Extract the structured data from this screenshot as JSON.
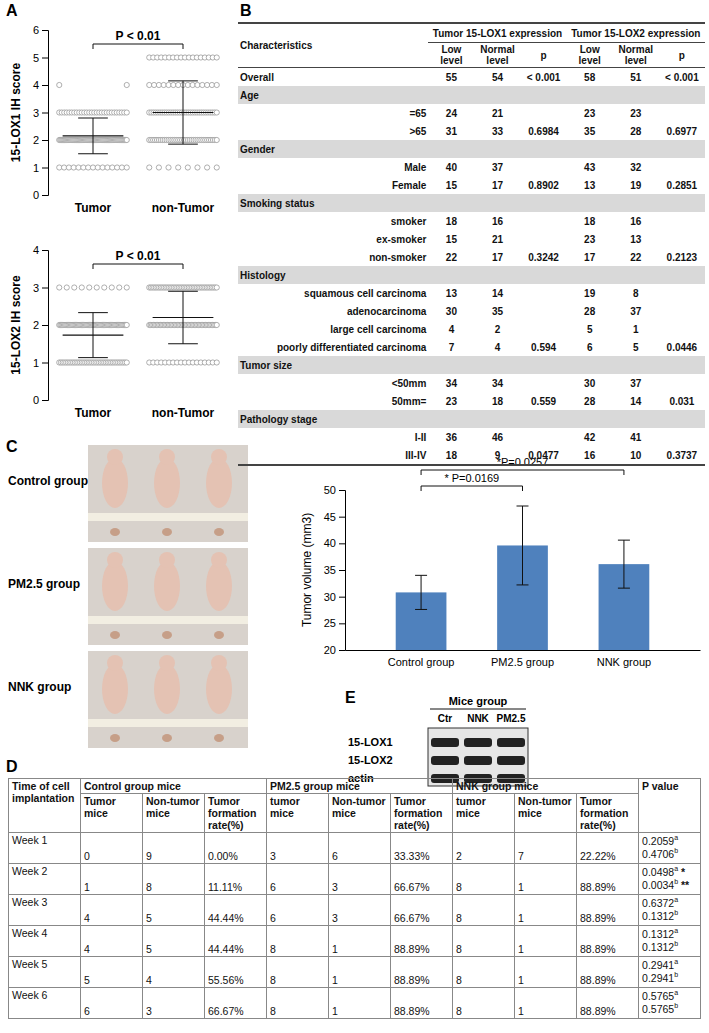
{
  "panel_labels": [
    "A",
    "B",
    "C",
    "D",
    "E"
  ],
  "chart_data": [
    {
      "type": "dot_plot",
      "ylabel": "15-LOX1 IH score",
      "categories": [
        "Tumor",
        "non-Tumor"
      ],
      "ylim": [
        0,
        6
      ],
      "yticks": [
        0,
        1,
        2,
        3,
        4,
        5,
        6
      ],
      "color": "#9a9a9a",
      "annotation": "P < 0.01",
      "groups": [
        {
          "levels": [
            1,
            2,
            3,
            4
          ],
          "counts": [
            15,
            64,
            28,
            2
          ],
          "mean": 2.15,
          "sd": 0.65
        },
        {
          "levels": [
            1,
            2,
            3,
            4,
            5
          ],
          "counts": [
            8,
            36,
            32,
            15,
            18
          ],
          "mean": 3.0,
          "sd": 1.15
        }
      ]
    },
    {
      "type": "dot_plot",
      "ylabel": "15-LOX2 IH score",
      "categories": [
        "Tumor",
        "non-Tumor"
      ],
      "ylim": [
        0,
        4
      ],
      "yticks": [
        0,
        1,
        2,
        3,
        4
      ],
      "color": "#9a9a9a",
      "annotation": "P < 0.01",
      "groups": [
        {
          "levels": [
            1,
            2,
            3
          ],
          "counts": [
            40,
            59,
            10
          ],
          "mean": 1.73,
          "sd": 0.6
        },
        {
          "levels": [
            1,
            2,
            3
          ],
          "counts": [
            18,
            49,
            42
          ],
          "mean": 2.2,
          "sd": 0.7
        }
      ]
    },
    {
      "type": "bar",
      "ylabel": "Tumor volume (mm3)",
      "categories": [
        "Control group",
        "PM2.5 group",
        "NNK group"
      ],
      "values": [
        30.8,
        39.6,
        36.1
      ],
      "errors": [
        3.2,
        7.4,
        4.5
      ],
      "color": "#4f81bd",
      "ylim": [
        20,
        50
      ],
      "yticks": [
        20,
        25,
        30,
        35,
        40,
        45,
        50
      ],
      "annotations": [
        {
          "text": "* P=0.0169",
          "between": [
            "Control group",
            "PM2.5 group"
          ]
        },
        {
          "text": "*P=0.0257",
          "between": [
            "Control group",
            "NNK group"
          ]
        }
      ]
    }
  ],
  "table_b": {
    "header": [
      "Characteristics",
      "Tumor 15-LOX1 expression",
      "Tumor 15-LOX2 expression"
    ],
    "subheader": [
      "Low level",
      "Normal level",
      "p",
      "Low level",
      "Normal level",
      "p"
    ],
    "rows": [
      [
        "Overall",
        "55",
        "54",
        "< 0.001",
        "58",
        "51",
        "< 0.001"
      ],
      [
        "Age"
      ],
      [
        "=65",
        "24",
        "21",
        null,
        "23",
        "23",
        null
      ],
      [
        ">65",
        "31",
        "33",
        "0.6984",
        "35",
        "28",
        "0.6977"
      ],
      [
        "Gender"
      ],
      [
        "Male",
        "40",
        "37",
        null,
        "43",
        "32",
        null
      ],
      [
        "Female",
        "15",
        "17",
        "0.8902",
        "13",
        "19",
        "0.2851"
      ],
      [
        "Smoking status"
      ],
      [
        "smoker",
        "18",
        "16",
        null,
        "18",
        "16",
        null
      ],
      [
        "ex-smoker",
        "15",
        "21",
        null,
        "23",
        "13",
        null
      ],
      [
        "non-smoker",
        "22",
        "17",
        "0.3242",
        "17",
        "22",
        "0.2123"
      ],
      [
        "Histology"
      ],
      [
        "squamous cell carcinoma",
        "13",
        "14",
        null,
        "19",
        "8",
        null
      ],
      [
        "adenocarcinoma",
        "30",
        "35",
        null,
        "28",
        "37",
        null
      ],
      [
        "large cell carcinoma",
        "4",
        "2",
        null,
        "5",
        "1",
        null
      ],
      [
        "poorly differentiated carcinoma",
        "7",
        "4",
        "0.594",
        "6",
        "5",
        "0.0446"
      ],
      [
        "Tumor size"
      ],
      [
        "<50mm",
        "34",
        "34",
        null,
        "30",
        "37",
        null
      ],
      [
        "50mm=",
        "23",
        "18",
        "0.559",
        "28",
        "14",
        "0.031"
      ],
      [
        "Pathology stage"
      ],
      [
        "I-II",
        "36",
        "46",
        null,
        "42",
        "41",
        null
      ],
      [
        "III-IV",
        "18",
        "9",
        "0.0477",
        "16",
        "10",
        "0.3737"
      ]
    ]
  },
  "photos": {
    "labels": [
      "Control group",
      "PM2.5 group",
      "NNK group"
    ]
  },
  "blot": {
    "title": "Mice group",
    "lanes": [
      "Ctr",
      "NNK",
      "PM2.5"
    ],
    "rows": [
      "15-LOX1",
      "15-LOX2",
      "actin"
    ]
  },
  "table_d": {
    "header": [
      "Time of cell implantation",
      "Control group mice",
      "PM2.5 group mice",
      "NNK group mice",
      "P value"
    ],
    "subheader": [
      "Tumor mice",
      "Non-tumor mice",
      "Tumor formation rate(%)",
      "tumor mice",
      "Non-tumor mice",
      "Tumor formation rate(%)",
      "tumor mice",
      "Non-tumor mice",
      "Tumor formation rate(%)"
    ],
    "rows": [
      {
        "time": "Week 1",
        "cells": [
          "0",
          "9",
          "0.00%",
          "3",
          "6",
          "33.33%",
          "2",
          "7",
          "22.22%"
        ],
        "p": [
          {
            "text": "0.2059",
            "sup": "a"
          },
          {
            "text": "0.4706",
            "sup": "b"
          }
        ]
      },
      {
        "time": "Week 2",
        "cells": [
          "1",
          "8",
          "11.11%",
          "6",
          "3",
          "66.67%",
          "8",
          "1",
          "88.89%"
        ],
        "p": [
          {
            "text": "0.0498",
            "sup": "a",
            "flag": "*"
          },
          {
            "text": "0.0034",
            "sup": "b",
            "flag": "**"
          }
        ]
      },
      {
        "time": "Week 3",
        "cells": [
          "4",
          "5",
          "44.44%",
          "6",
          "3",
          "66.67%",
          "8",
          "1",
          "88.89%"
        ],
        "p": [
          {
            "text": "0.6372",
            "sup": "a"
          },
          {
            "text": "0.1312",
            "sup": "b"
          }
        ]
      },
      {
        "time": "Week 4",
        "cells": [
          "4",
          "5",
          "44.44%",
          "8",
          "1",
          "88.89%",
          "8",
          "1",
          "88.89%"
        ],
        "p": [
          {
            "text": "0.1312",
            "sup": "a"
          },
          {
            "text": "0.1312",
            "sup": "b"
          }
        ]
      },
      {
        "time": "Week 5",
        "cells": [
          "5",
          "4",
          "55.56%",
          "8",
          "1",
          "88.89%",
          "8",
          "1",
          "88.89%"
        ],
        "p": [
          {
            "text": "0.2941",
            "sup": "a"
          },
          {
            "text": "0.2941",
            "sup": "b"
          }
        ]
      },
      {
        "time": "Week 6",
        "cells": [
          "6",
          "3",
          "66.67%",
          "8",
          "1",
          "88.89%",
          "8",
          "1",
          "88.89%"
        ],
        "p": [
          {
            "text": "0.5765",
            "sup": "a"
          },
          {
            "text": "0.5765",
            "sup": "b"
          }
        ]
      }
    ]
  }
}
